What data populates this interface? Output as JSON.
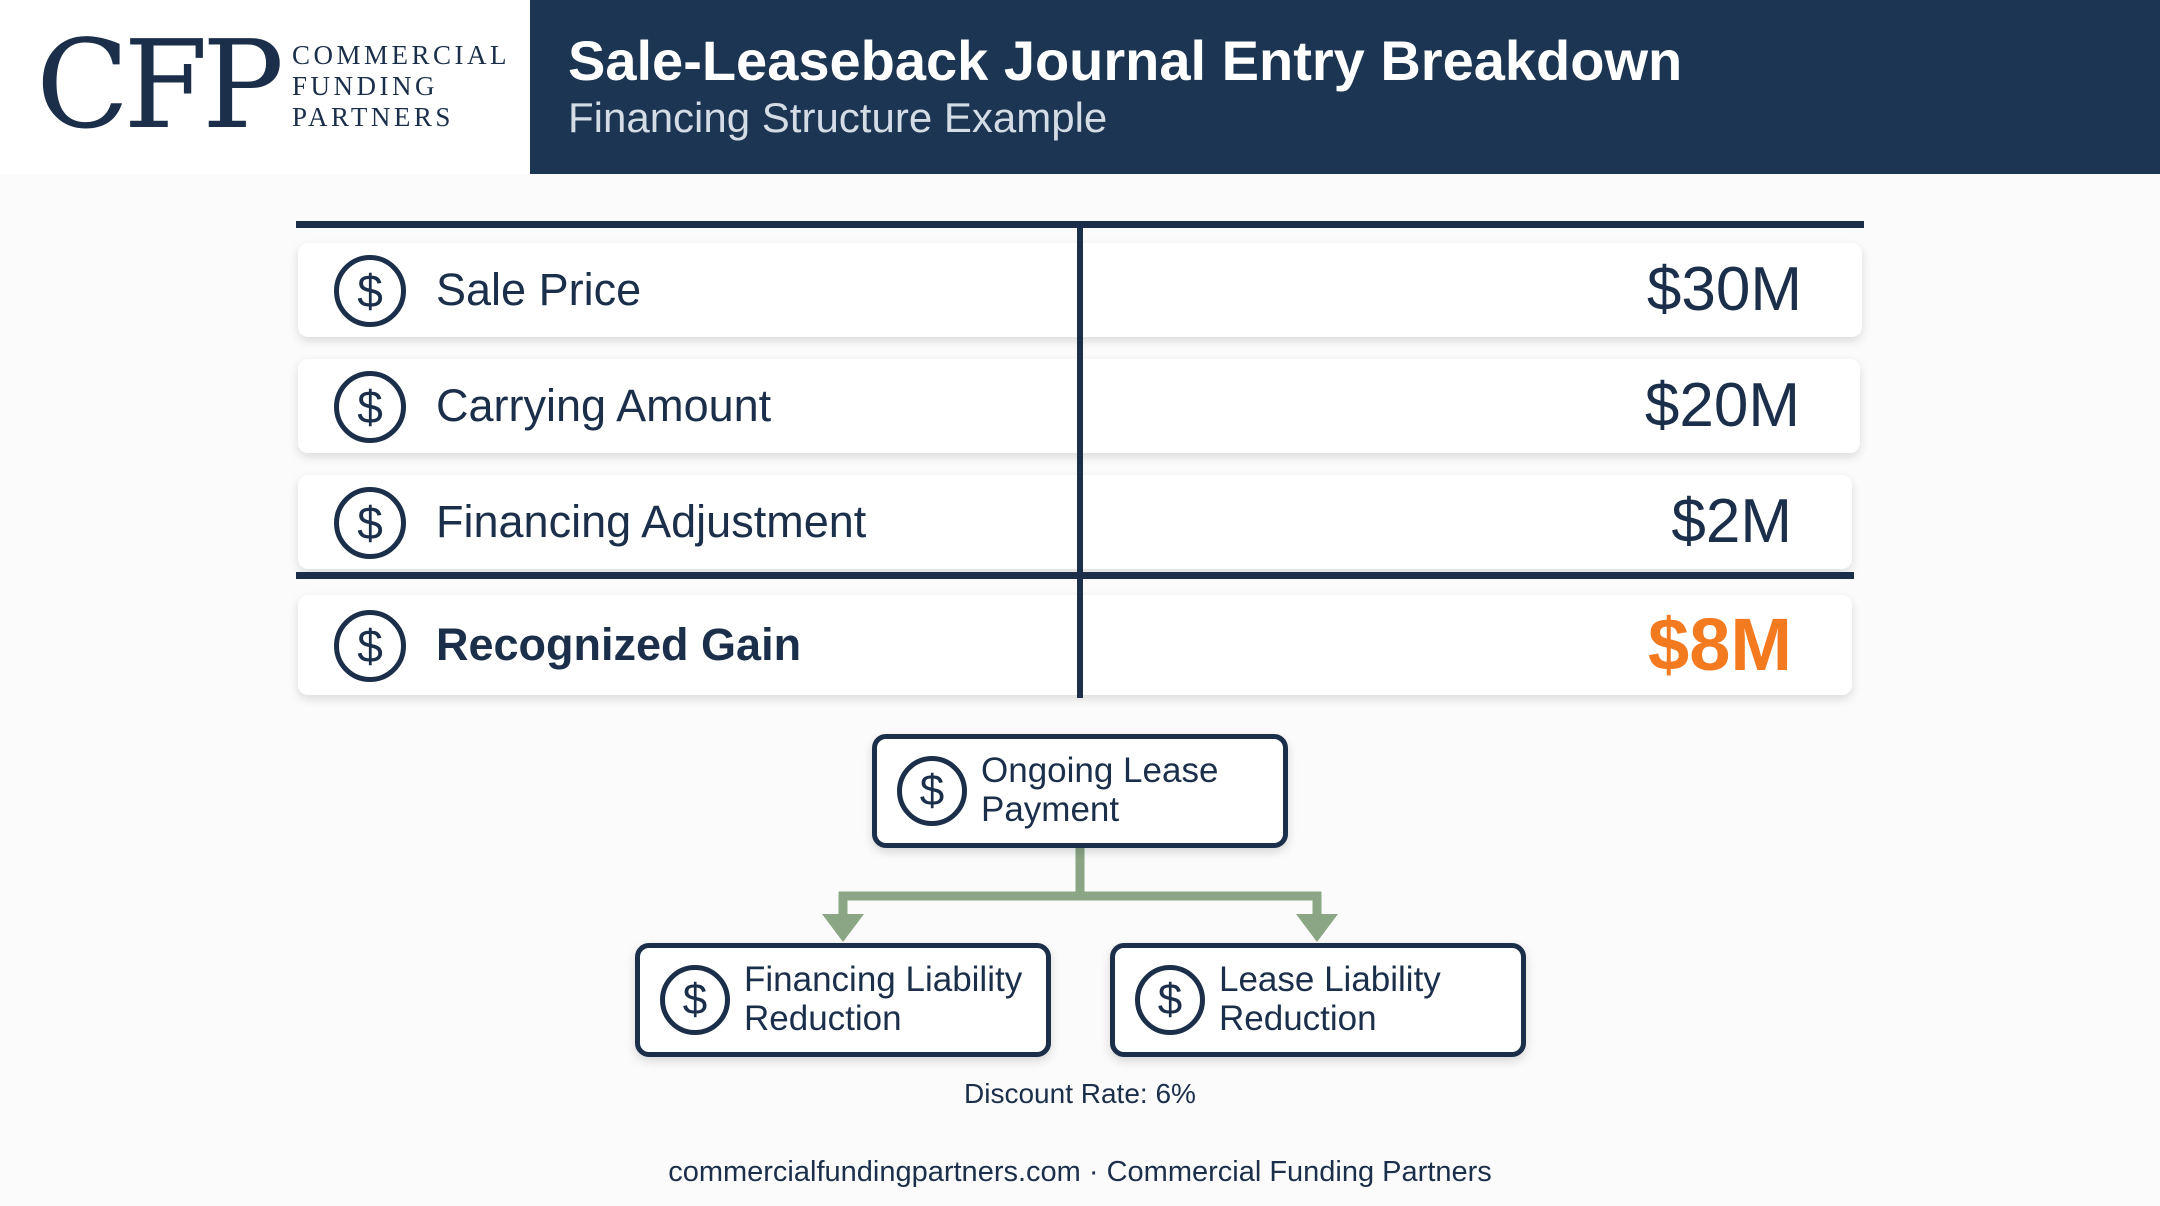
{
  "logo": {
    "mark": "CFP",
    "line1": "COMMERCIAL",
    "line2": "FUNDING",
    "line3": "PARTNERS"
  },
  "header": {
    "title": "Sale-Leaseback Journal Entry Breakdown",
    "subtitle": "Financing Structure Example"
  },
  "table": {
    "rows": [
      {
        "icon": "dollar-icon",
        "label": "Sale Price",
        "value": "$30M"
      },
      {
        "icon": "dollar-icon",
        "label": "Carrying Amount",
        "value": "$20M"
      },
      {
        "icon": "dollar-icon",
        "label": "Financing Adjustment",
        "value": "$2M"
      }
    ],
    "total": {
      "icon": "dollar-icon",
      "label": "Recognized Gain",
      "value": "$8M"
    }
  },
  "flow": {
    "root": {
      "icon": "dollar-icon",
      "line1": "Ongoing Lease",
      "line2": "Payment"
    },
    "left": {
      "icon": "dollar-icon",
      "line1": "Financing Liability",
      "line2": "Reduction"
    },
    "right": {
      "icon": "dollar-icon",
      "line1": "Lease Liability",
      "line2": "Reduction"
    }
  },
  "discount_rate": "Discount Rate: 6%",
  "footer": "commercialfundingpartners.com · Commercial Funding Partners",
  "colors": {
    "navy": "#1b2f4a",
    "header_band": "#1b3553",
    "accent_orange": "#f47a20",
    "connector_green": "#8aa684"
  }
}
